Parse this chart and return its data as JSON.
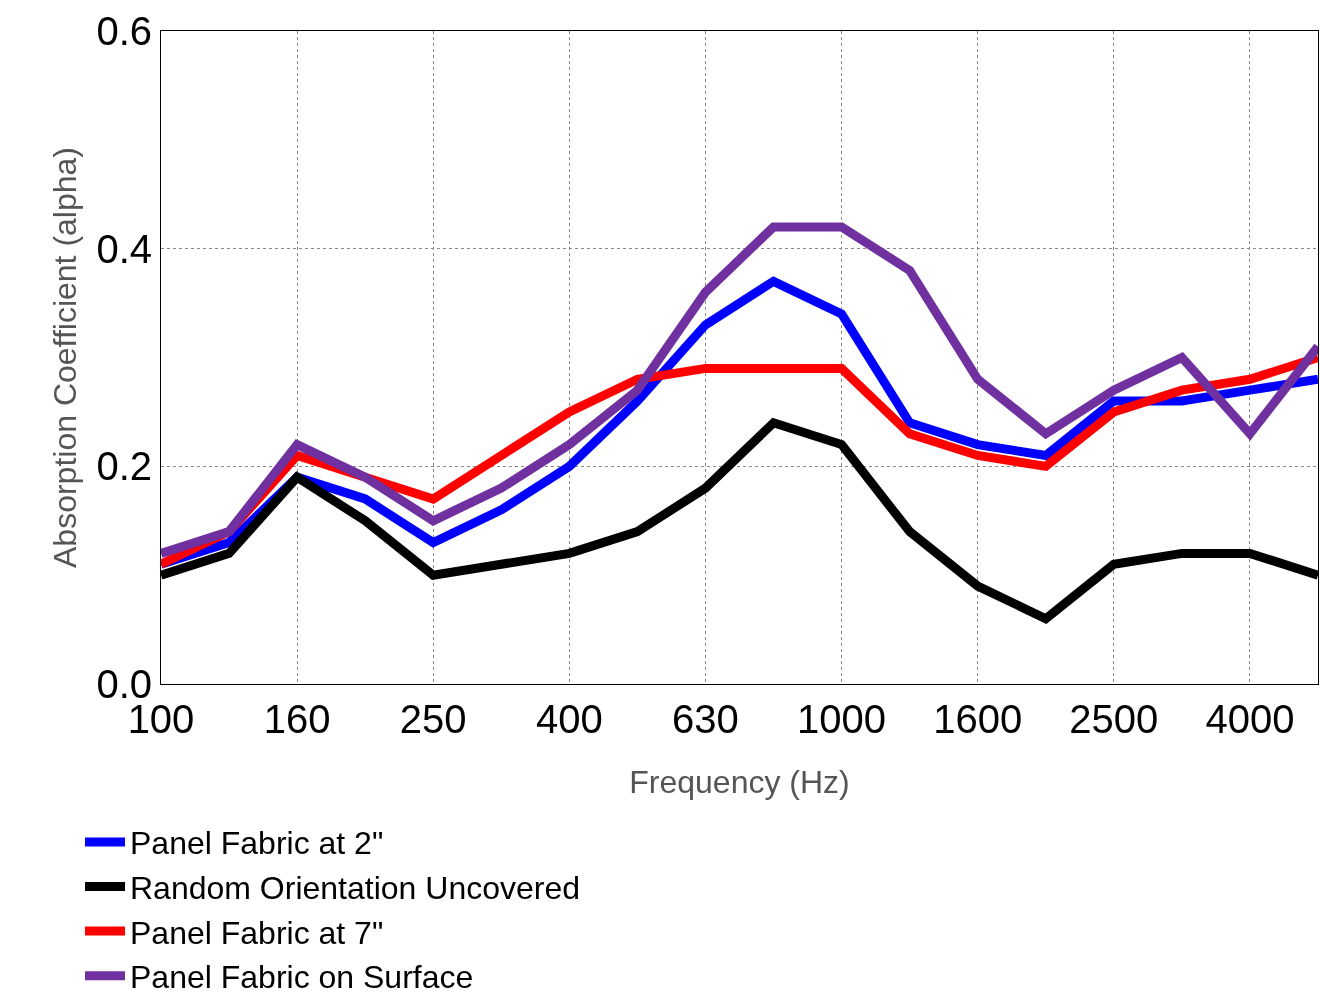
{
  "chart_data": {
    "type": "line",
    "xlabel": "Frequency (Hz)",
    "ylabel": "Absorption Coefficient (alpha)",
    "categories": [
      "100",
      null,
      "160",
      null,
      "250",
      null,
      "400",
      null,
      "630",
      null,
      "1000",
      null,
      "1600",
      null,
      "2500",
      null,
      "4000",
      null
    ],
    "ylim": [
      0,
      0.6
    ],
    "yticks": [
      {
        "value": 0,
        "label": "0.0"
      },
      {
        "value": 0.2,
        "label": "0.2"
      },
      {
        "value": 0.4,
        "label": "0.4"
      },
      {
        "value": 0.6,
        "label": "0.6"
      }
    ],
    "grid": true,
    "legend": "bottom",
    "marker": "none",
    "line_style": "solid",
    "series": [
      {
        "name": "Panel Fabric at 2\"",
        "color": "#0000ff",
        "values": [
          0.11,
          0.13,
          0.19,
          0.17,
          0.13,
          0.16,
          0.2,
          0.26,
          0.33,
          0.37,
          0.34,
          0.24,
          0.22,
          0.21,
          0.26,
          0.26,
          0.27,
          0.28
        ]
      },
      {
        "name": "Random Orientation Uncovered",
        "color": "#000000",
        "values": [
          0.1,
          0.12,
          0.19,
          0.15,
          0.1,
          0.11,
          0.12,
          0.14,
          0.18,
          0.24,
          0.22,
          0.14,
          0.09,
          0.06,
          0.11,
          0.12,
          0.12,
          0.1
        ]
      },
      {
        "name": "Panel Fabric at 7\"",
        "color": "#ff0000",
        "values": [
          0.11,
          0.14,
          0.21,
          0.19,
          0.17,
          0.21,
          0.25,
          0.28,
          0.29,
          0.29,
          0.29,
          0.23,
          0.21,
          0.2,
          0.25,
          0.27,
          0.28,
          0.3
        ]
      },
      {
        "name": "Panel Fabric on Surface",
        "color": "#7030a0",
        "values": [
          0.12,
          0.14,
          0.22,
          0.19,
          0.15,
          0.18,
          0.22,
          0.27,
          0.36,
          0.42,
          0.42,
          0.38,
          0.28,
          0.23,
          0.27,
          0.3,
          0.23,
          0.31
        ]
      }
    ]
  }
}
